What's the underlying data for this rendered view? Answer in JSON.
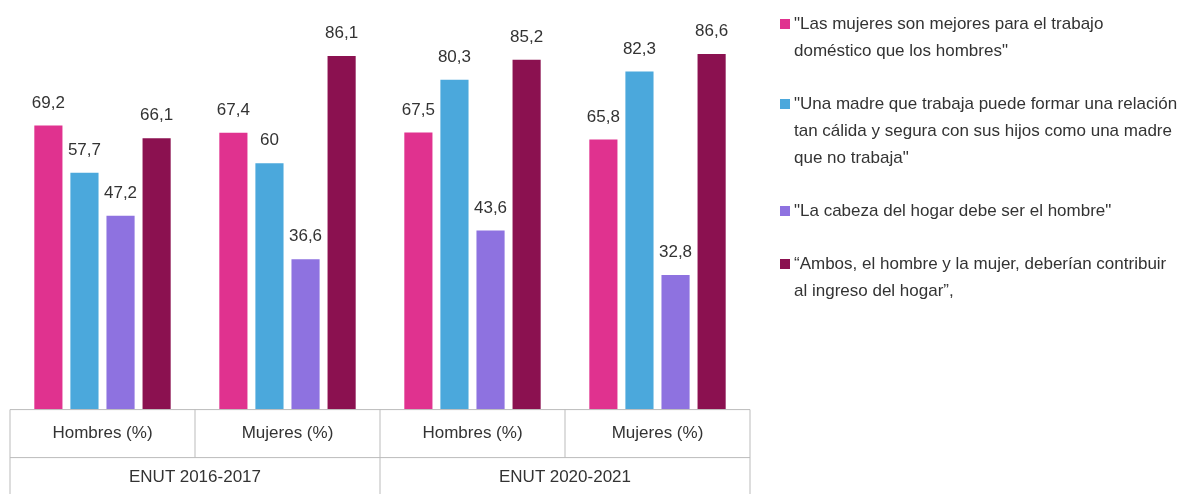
{
  "chart_data": {
    "type": "bar",
    "categories": [
      "Hombres (%)",
      "Mujeres (%)",
      "Hombres (%)",
      "Mujeres (%)"
    ],
    "series": [
      {
        "name": "\"Las mujeres son mejores para el trabajo doméstico que los hombres\"",
        "color": "#e0328f",
        "values": [
          69.2,
          67.4,
          67.5,
          65.8
        ],
        "value_labels": [
          "69,2",
          "67,4",
          "67,5",
          "65,8"
        ]
      },
      {
        "name": "\"Una madre que trabaja puede formar una relación tan cálida y segura con sus hijos como una madre que no trabaja\"",
        "color": "#4ba8dc",
        "values": [
          57.7,
          60,
          80.3,
          82.3
        ],
        "value_labels": [
          "57,7",
          "60",
          "80,3",
          "82,3"
        ]
      },
      {
        "name": "\"La cabeza del hogar debe ser el hombre\"",
        "color": "#8e72e0",
        "values": [
          47.2,
          36.6,
          43.6,
          32.8
        ],
        "value_labels": [
          "47,2",
          "36,6",
          "43,6",
          "32,8"
        ]
      },
      {
        "name": "“Ambos, el hombre y la mujer, deberían contribuir al ingreso del hogar”,",
        "color": "#8b1150",
        "values": [
          66.1,
          86.1,
          85.2,
          86.6
        ],
        "value_labels": [
          "66,1",
          "86,1",
          "85,2",
          "86,6"
        ]
      }
    ],
    "annotations": [
      "ENUT 2016-2017",
      "ENUT 2020-2021"
    ],
    "legend": "right",
    "grid": false
  }
}
